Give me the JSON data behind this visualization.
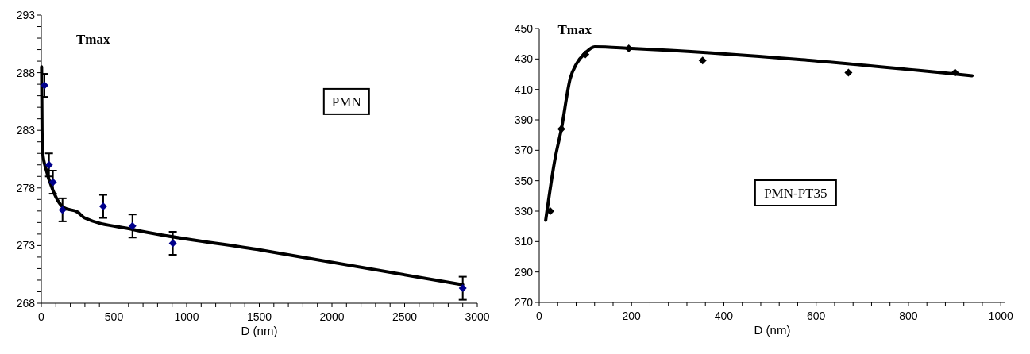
{
  "chart_data": [
    {
      "type": "scatter",
      "title": "Tmax",
      "xlabel": "D (nm)",
      "annotations": [
        "PMN"
      ],
      "marker": "diamond",
      "xlim": [
        0,
        3000
      ],
      "ylim": [
        268,
        293
      ],
      "xticks": [
        0,
        {
          "value": 100,
          "label": null
        },
        {
          "value": 200,
          "label": null
        },
        {
          "value": 300,
          "label": null
        },
        {
          "value": 400,
          "label": null
        },
        500,
        {
          "value": 600,
          "label": null
        },
        {
          "value": 700,
          "label": null
        },
        {
          "value": 800,
          "label": null
        },
        {
          "value": 900,
          "label": null
        },
        1000,
        {
          "value": 1100,
          "label": null
        },
        {
          "value": 1200,
          "label": null
        },
        {
          "value": 1300,
          "label": null
        },
        {
          "value": 1400,
          "label": null
        },
        1500,
        {
          "value": 1600,
          "label": null
        },
        {
          "value": 1700,
          "label": null
        },
        {
          "value": 1800,
          "label": null
        },
        {
          "value": 1900,
          "label": null
        },
        2000,
        {
          "value": 2100,
          "label": null
        },
        {
          "value": 2200,
          "label": null
        },
        {
          "value": 2300,
          "label": null
        },
        {
          "value": 2400,
          "label": null
        },
        2500,
        {
          "value": 2600,
          "label": null
        },
        {
          "value": 2700,
          "label": null
        },
        {
          "value": 2800,
          "label": null
        },
        {
          "value": 2900,
          "label": null
        },
        3000
      ],
      "yticks": [
        268,
        {
          "value": 269,
          "label": null
        },
        {
          "value": 270,
          "label": null
        },
        {
          "value": 271,
          "label": null
        },
        {
          "value": 272,
          "label": null
        },
        273,
        {
          "value": 274,
          "label": null
        },
        {
          "value": 275,
          "label": null
        },
        {
          "value": 276,
          "label": null
        },
        {
          "value": 277,
          "label": null
        },
        278,
        {
          "value": 279,
          "label": null
        },
        {
          "value": 280,
          "label": null
        },
        {
          "value": 281,
          "label": null
        },
        {
          "value": 282,
          "label": null
        },
        283,
        {
          "value": 284,
          "label": null
        },
        {
          "value": 285,
          "label": null
        },
        {
          "value": 286,
          "label": null
        },
        {
          "value": 287,
          "label": null
        },
        288,
        {
          "value": 289,
          "label": null
        },
        {
          "value": 290,
          "label": null
        },
        {
          "value": 291,
          "label": null
        },
        {
          "value": 292,
          "label": null
        },
        293
      ],
      "series": [
        {
          "type": "line",
          "color": "#000000",
          "marker": "none",
          "line_style": "solid",
          "x": [
            2,
            5,
            10,
            33,
            80,
            153,
            250,
            298,
            627,
            1517,
            2900
          ],
          "values": [
            288.5,
            283,
            281,
            279.6,
            277.8,
            276.3,
            275.9,
            275.4,
            274.4,
            272.6,
            269.6
          ]
        },
        {
          "color": "#00008b",
          "x": [
            22,
            53,
            80,
            146,
            426,
            627,
            905,
            2900
          ],
          "values": [
            286.9,
            280,
            278.5,
            276.1,
            276.4,
            274.7,
            273.2,
            269.3
          ],
          "errors": [
            1,
            1,
            1,
            1,
            1,
            1,
            1,
            1
          ]
        }
      ]
    },
    {
      "type": "scatter",
      "title": "Tmax",
      "xlabel": "D (nm)",
      "annotations": [
        "PMN-PT35"
      ],
      "marker": "diamond",
      "xlim": [
        0,
        1010
      ],
      "ylim": [
        270,
        450
      ],
      "xticks": [
        0,
        {
          "value": 40,
          "label": null
        },
        {
          "value": 80,
          "label": null
        },
        {
          "value": 120,
          "label": null
        },
        {
          "value": 160,
          "label": null
        },
        200,
        {
          "value": 240,
          "label": null
        },
        {
          "value": 280,
          "label": null
        },
        {
          "value": 320,
          "label": null
        },
        {
          "value": 360,
          "label": null
        },
        400,
        {
          "value": 440,
          "label": null
        },
        {
          "value": 480,
          "label": null
        },
        {
          "value": 520,
          "label": null
        },
        {
          "value": 560,
          "label": null
        },
        600,
        {
          "value": 640,
          "label": null
        },
        {
          "value": 680,
          "label": null
        },
        {
          "value": 720,
          "label": null
        },
        {
          "value": 760,
          "label": null
        },
        800,
        {
          "value": 840,
          "label": null
        },
        {
          "value": 880,
          "label": null
        },
        {
          "value": 920,
          "label": null
        },
        {
          "value": 960,
          "label": null
        },
        1000
      ],
      "yticks": [
        270,
        290,
        310,
        330,
        350,
        370,
        390,
        410,
        430,
        450
      ],
      "series": [
        {
          "type": "line",
          "color": "#000000",
          "marker": "none",
          "line_style": "solid",
          "x": [
            14,
            34,
            48,
            67,
            81,
            100,
            120,
            200,
            938
          ],
          "values": [
            324,
            364,
            384,
            417,
            427,
            434,
            438,
            437,
            419
          ]
        },
        {
          "color": "#000000",
          "x": [
            24,
            48,
            100,
            194,
            354,
            670,
            901
          ],
          "values": [
            330,
            384,
            433,
            437,
            429,
            421,
            421
          ]
        }
      ]
    }
  ]
}
